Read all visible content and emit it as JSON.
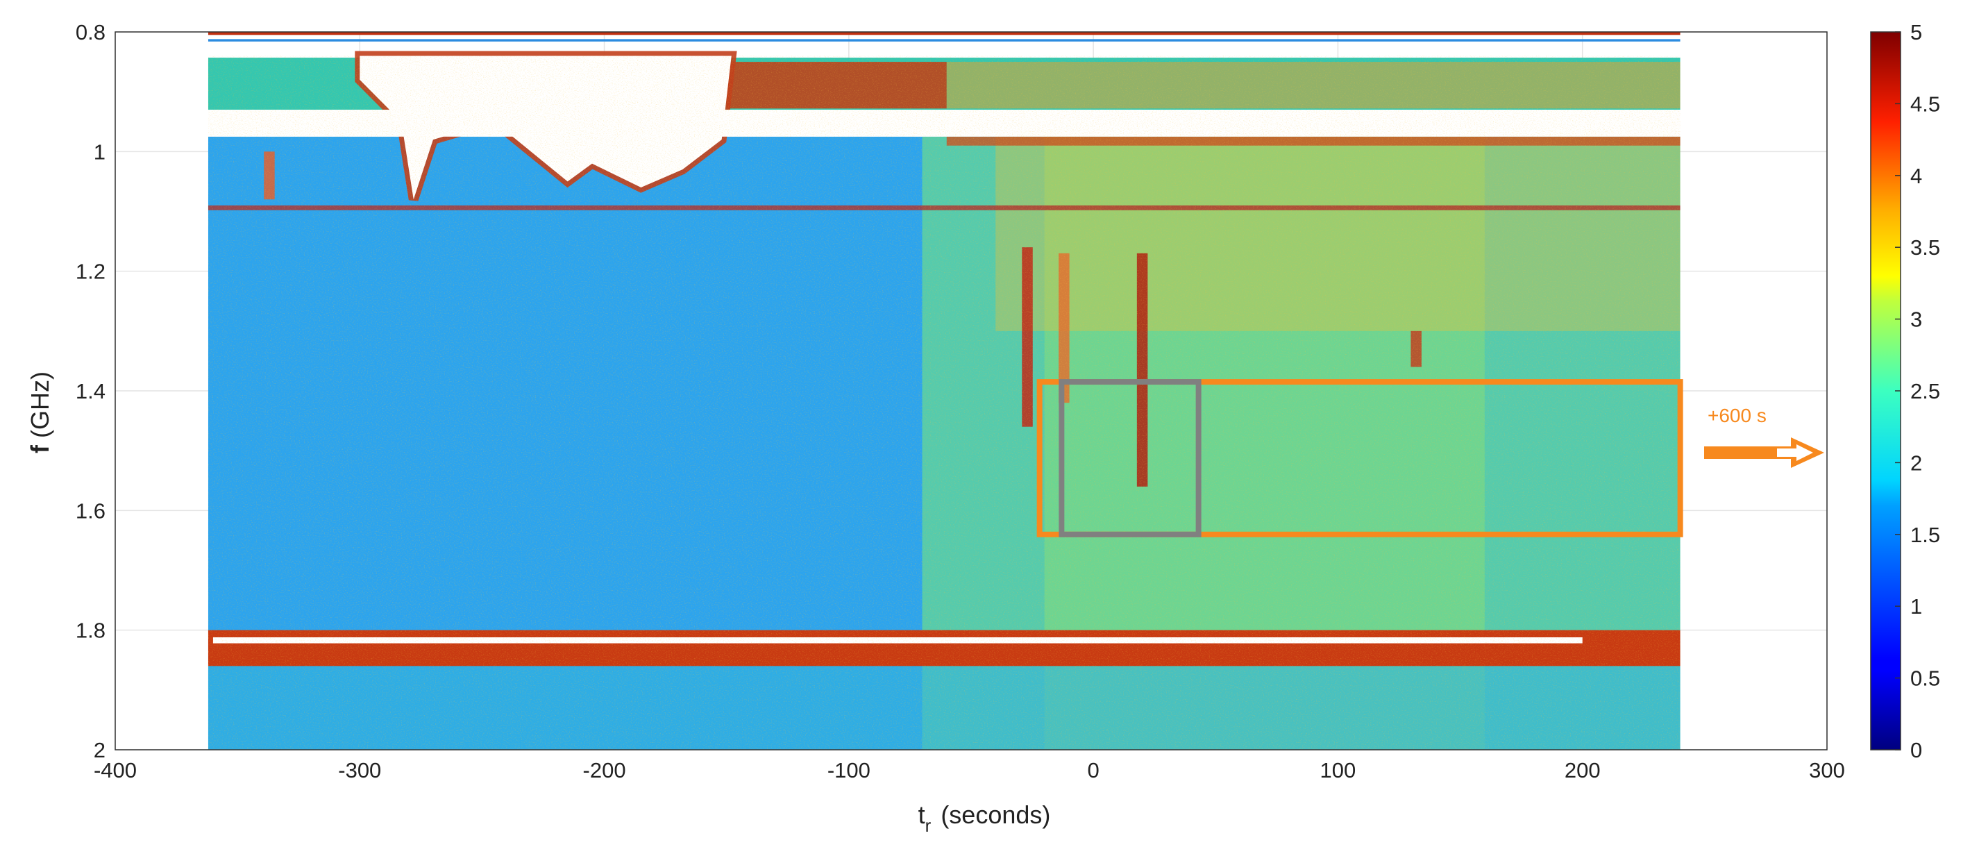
{
  "chart_data": {
    "type": "heatmap",
    "title": "",
    "xlabel": "t",
    "xlabel_subscript": "r",
    "xlabel_suffix": "(seconds)",
    "ylabel": "f",
    "ylabel_unit": "(GHz)",
    "xlim": [
      -400,
      300
    ],
    "ylim": [
      0.8,
      2
    ],
    "y_reversed": true,
    "x_ticks": [
      "-400",
      "-300",
      "-200",
      "-100",
      "0",
      "100",
      "200",
      "300"
    ],
    "x_tick_values": [
      -400,
      -300,
      -200,
      -100,
      0,
      100,
      200,
      300
    ],
    "y_ticks": [
      "0.8",
      "1",
      "1.2",
      "1.4",
      "1.6",
      "1.8",
      "2"
    ],
    "y_tick_values": [
      0.8,
      1.0,
      1.2,
      1.4,
      1.6,
      1.8,
      2.0
    ],
    "grid": true,
    "data_extent": {
      "t_min": -362,
      "t_max": 240
    },
    "colormap": "jet",
    "colorbar": {
      "range": [
        0,
        5
      ],
      "ticks": [
        "0",
        "0.5",
        "1",
        "1.5",
        "2",
        "2.5",
        "3",
        "3.5",
        "4",
        "4.5",
        "5"
      ],
      "tick_values": [
        0,
        0.5,
        1,
        1.5,
        2,
        2.5,
        3,
        3.5,
        4,
        4.5,
        5
      ]
    },
    "regions": [
      {
        "kind": "orange-window",
        "t": [
          -22,
          240
        ],
        "f": [
          1.385,
          1.64
        ],
        "color": "#F7891E"
      },
      {
        "kind": "gray-window",
        "t": [
          -13,
          43
        ],
        "f": [
          1.385,
          1.64
        ],
        "color": "#808080"
      }
    ],
    "annotation": {
      "text": "+600 s",
      "color": "#F7891E"
    }
  }
}
